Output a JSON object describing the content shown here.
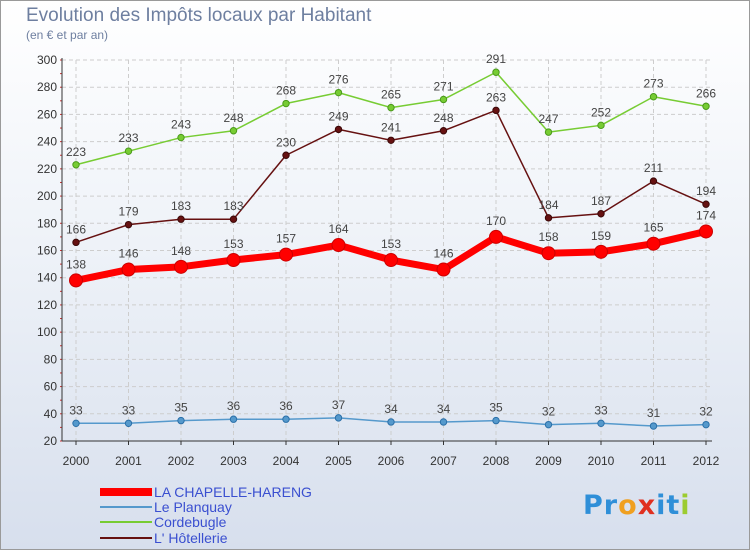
{
  "chart_data": {
    "type": "line",
    "title": "Evolution des Impôts locaux par Habitant",
    "subtitle": "(en € et par an)",
    "categories": [
      "2000",
      "2001",
      "2002",
      "2003",
      "2004",
      "2005",
      "2006",
      "2007",
      "2008",
      "2009",
      "2010",
      "2011",
      "2012"
    ],
    "ylim": [
      20,
      300
    ],
    "yticks": [
      20,
      40,
      60,
      80,
      100,
      120,
      140,
      160,
      180,
      200,
      220,
      240,
      260,
      280,
      300
    ],
    "grid": true,
    "legend_position": "bottom-left",
    "series": [
      {
        "name": "LA CHAPELLE-HARENG",
        "color": "#ff0000",
        "values": [
          138,
          146,
          148,
          153,
          157,
          164,
          153,
          146,
          170,
          158,
          159,
          165,
          174
        ]
      },
      {
        "name": "Le Planquay",
        "color": "#5599cc",
        "values": [
          33,
          33,
          35,
          36,
          36,
          37,
          34,
          34,
          35,
          32,
          33,
          31,
          32
        ]
      },
      {
        "name": "Cordebugle",
        "color": "#77cc33",
        "values": [
          223,
          233,
          243,
          248,
          268,
          276,
          265,
          271,
          291,
          247,
          252,
          273,
          266
        ]
      },
      {
        "name": "L' Hôtellerie",
        "color": "#661111",
        "values": [
          166,
          179,
          183,
          183,
          230,
          249,
          241,
          248,
          263,
          184,
          187,
          211,
          194
        ]
      }
    ]
  },
  "logo": {
    "text": "Proxiti",
    "letters": [
      "P",
      "r",
      "o",
      "x",
      "i",
      "t",
      "i"
    ],
    "colors": [
      "#2f8fd8",
      "#2f8fd8",
      "#f0a020",
      "#e03020",
      "#2f8fd8",
      "#2f8fd8",
      "#9ccc30"
    ]
  }
}
